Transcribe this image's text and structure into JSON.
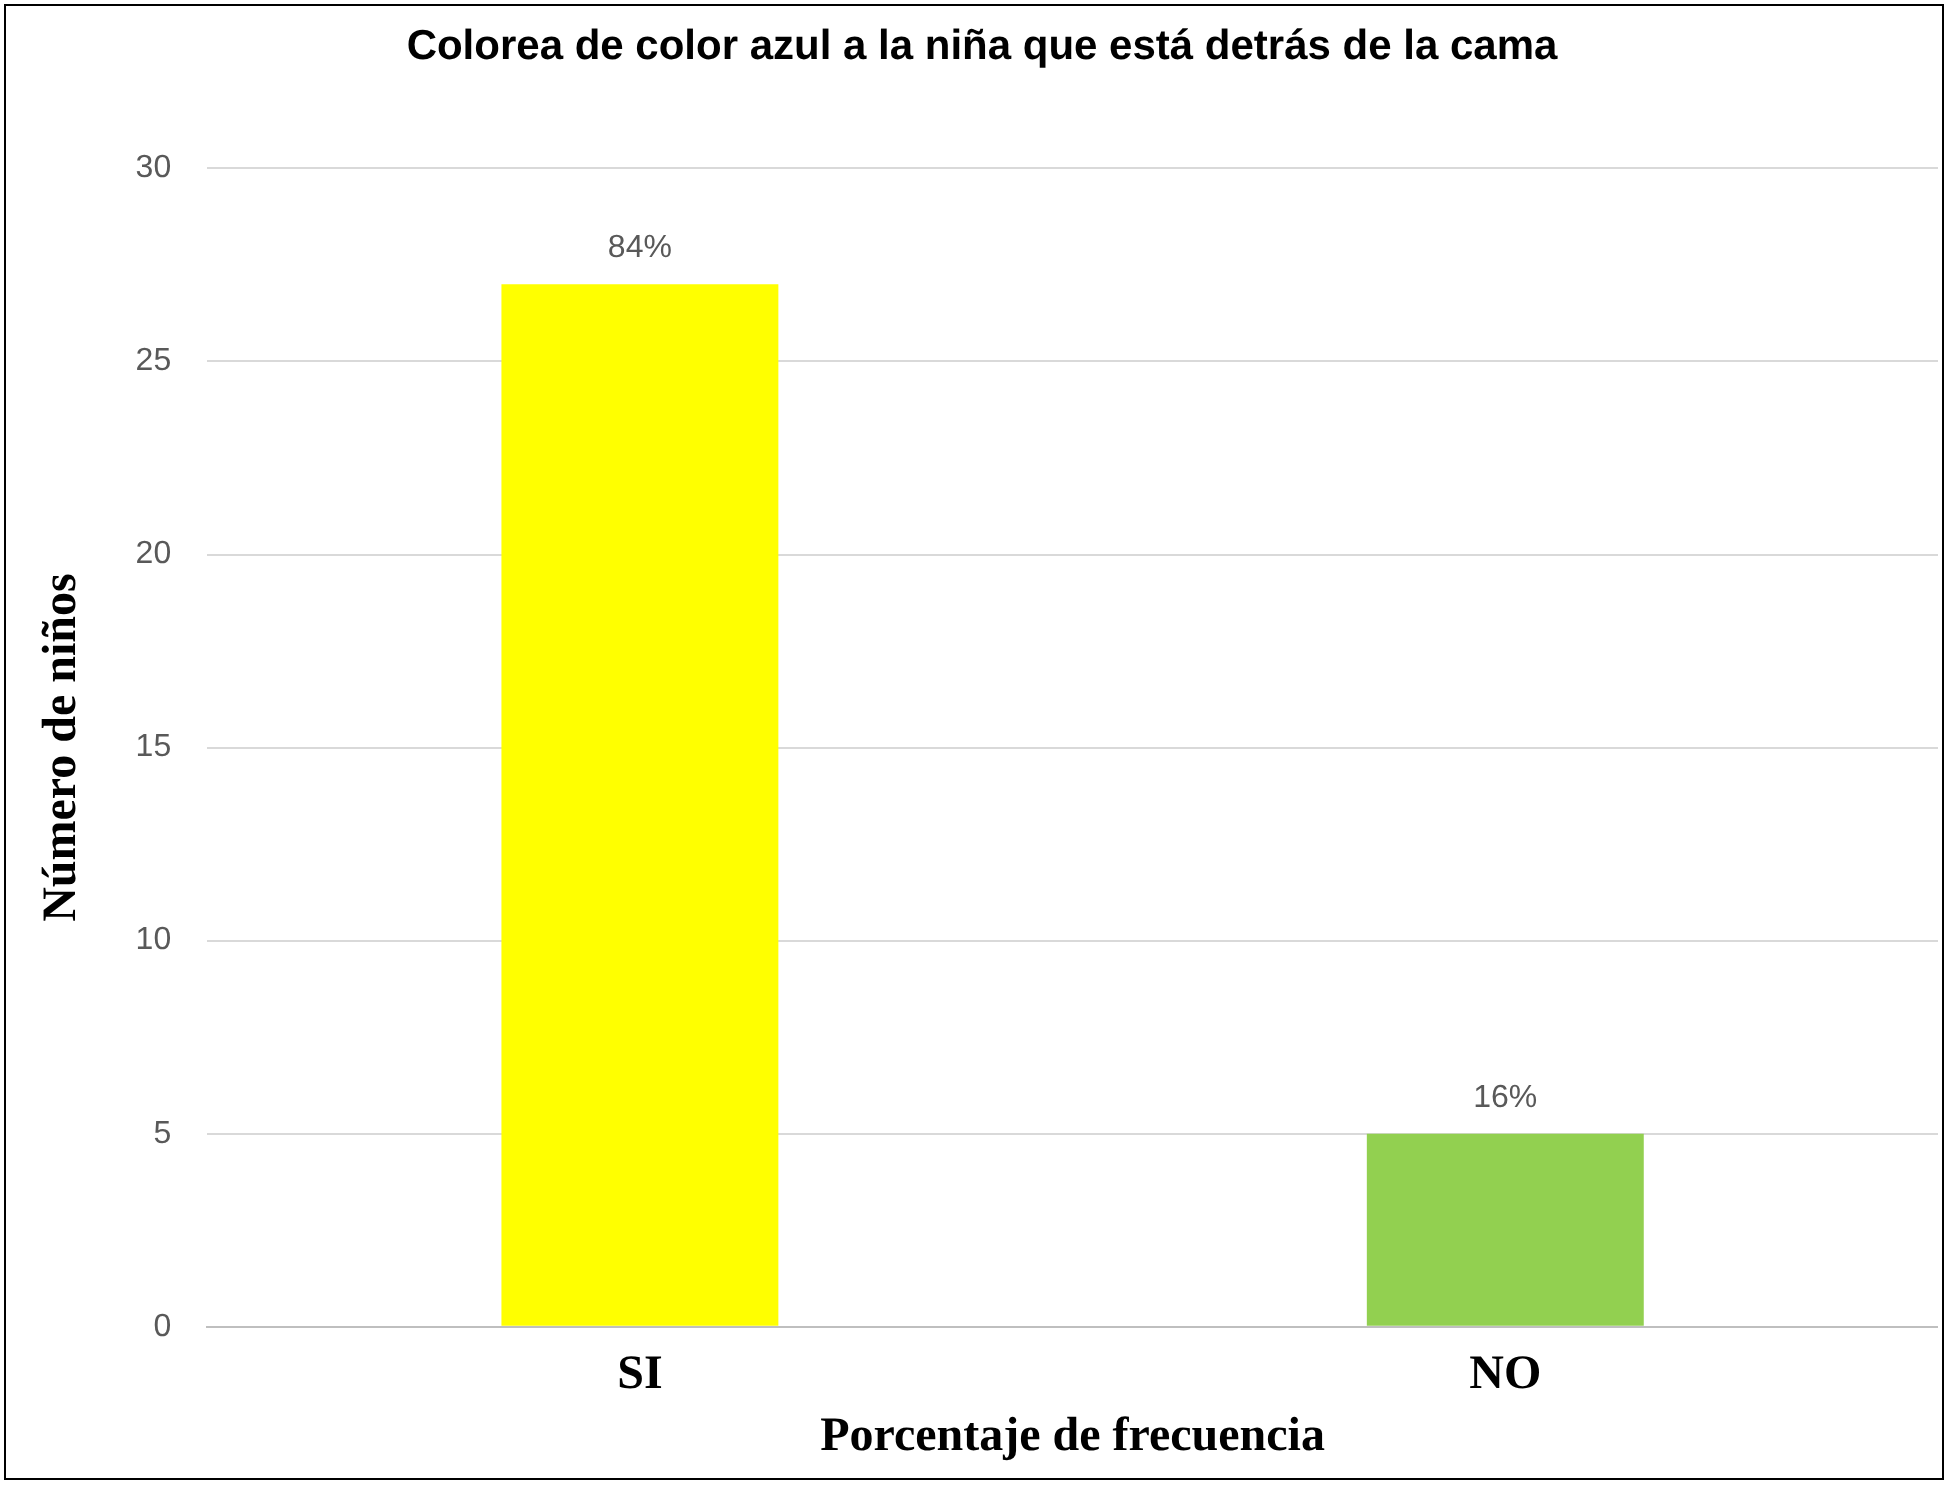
{
  "chart_data": {
    "type": "bar",
    "title": "Colorea de color azul a la niña que está detrás de la cama",
    "xlabel": "Porcentaje de frecuencia",
    "ylabel": "Número de niños",
    "categories": [
      "SI",
      "NO"
    ],
    "values": [
      27,
      5
    ],
    "colors": [
      "#ffff00",
      "#92d050"
    ],
    "annotations": [
      {
        "text": "84%",
        "x": "SI",
        "y": 27
      },
      {
        "text": "16%",
        "x": "NO",
        "y": 5
      }
    ],
    "ylim": [
      0,
      30
    ],
    "yticks": [
      0,
      5,
      10,
      15,
      20,
      25,
      30
    ],
    "grid": "y"
  }
}
